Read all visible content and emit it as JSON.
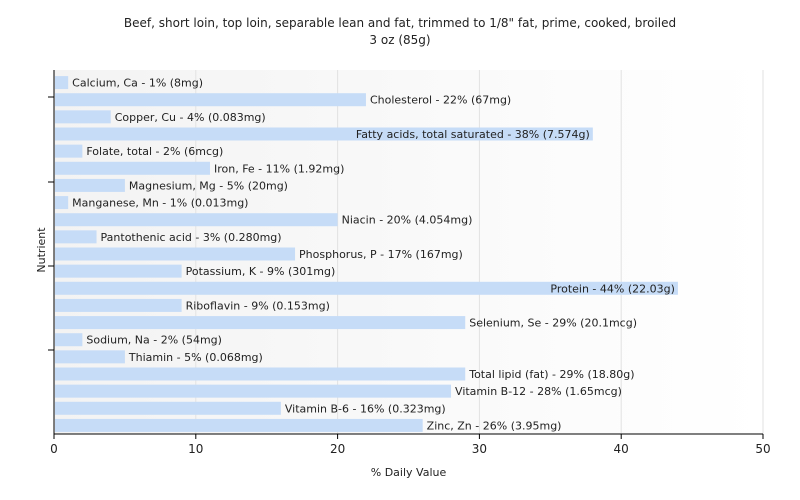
{
  "chart_data": {
    "type": "bar",
    "orientation": "horizontal",
    "title": "Beef, short loin, top loin, separable lean and fat, trimmed to 1/8\" fat, prime, cooked, broiled",
    "subtitle": "3 oz (85g)",
    "xlabel": "% Daily Value",
    "ylabel": "Nutrient",
    "xlim": [
      0,
      50
    ],
    "xticks": [
      0,
      10,
      20,
      30,
      40,
      50
    ],
    "grid": true,
    "bar_color": "#c6dcf7",
    "categories": [
      "Calcium, Ca",
      "Cholesterol",
      "Copper, Cu",
      "Fatty acids, total saturated",
      "Folate, total",
      "Iron, Fe",
      "Magnesium, Mg",
      "Manganese, Mn",
      "Niacin",
      "Pantothenic acid",
      "Phosphorus, P",
      "Potassium, K",
      "Protein",
      "Riboflavin",
      "Selenium, Se",
      "Sodium, Na",
      "Thiamin",
      "Total lipid (fat)",
      "Vitamin B-12",
      "Vitamin B-6",
      "Zinc, Zn"
    ],
    "values": [
      1,
      22,
      4,
      38,
      2,
      11,
      5,
      1,
      20,
      3,
      17,
      9,
      44,
      9,
      29,
      2,
      5,
      29,
      28,
      16,
      26
    ],
    "labels": [
      "Calcium, Ca - 1% (8mg)",
      "Cholesterol - 22% (67mg)",
      "Copper, Cu - 4% (0.083mg)",
      "Fatty acids, total saturated - 38% (7.574g)",
      "Folate, total - 2% (6mcg)",
      "Iron, Fe - 11% (1.92mg)",
      "Magnesium, Mg - 5% (20mg)",
      "Manganese, Mn - 1% (0.013mg)",
      "Niacin - 20% (4.054mg)",
      "Pantothenic acid - 3% (0.280mg)",
      "Phosphorus, P - 17% (167mg)",
      "Potassium, K - 9% (301mg)",
      "Protein - 44% (22.03g)",
      "Riboflavin - 9% (0.153mg)",
      "Selenium, Se - 29% (20.1mcg)",
      "Sodium, Na - 2% (54mg)",
      "Thiamin - 5% (0.068mg)",
      "Total lipid (fat) - 29% (18.80g)",
      "Vitamin B-12 - 28% (1.65mcg)",
      "Vitamin B-6 - 16% (0.323mg)",
      "Zinc, Zn - 26% (3.95mg)"
    ]
  }
}
